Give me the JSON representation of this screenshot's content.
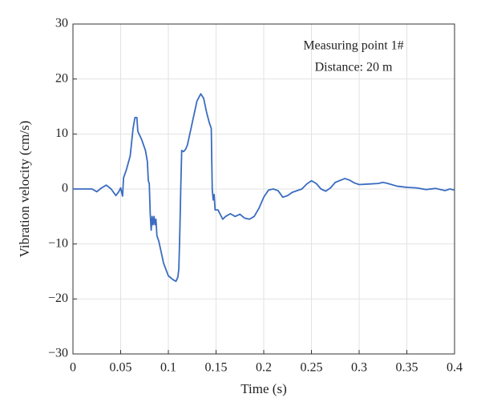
{
  "chart_data": {
    "type": "line",
    "xlabel": "Time (s)",
    "ylabel": "Vibration velocity (cm/s)",
    "annotations": [
      "Measuring point 1#",
      "Distance: 20 m"
    ],
    "x": [
      0,
      0.02,
      0.025,
      0.03,
      0.035,
      0.04,
      0.045,
      0.048,
      0.05,
      0.052,
      0.053,
      0.056,
      0.06,
      0.063,
      0.065,
      0.067,
      0.068,
      0.072,
      0.076,
      0.078,
      0.079,
      0.08,
      0.081,
      0.082,
      0.083,
      0.084,
      0.085,
      0.086,
      0.087,
      0.088,
      0.09,
      0.095,
      0.1,
      0.105,
      0.108,
      0.11,
      0.111,
      0.112,
      0.113,
      0.114,
      0.116,
      0.118,
      0.12,
      0.125,
      0.13,
      0.134,
      0.137,
      0.14,
      0.143,
      0.145,
      0.146,
      0.147,
      0.148,
      0.149,
      0.152,
      0.157,
      0.16,
      0.165,
      0.17,
      0.175,
      0.18,
      0.185,
      0.19,
      0.195,
      0.2,
      0.205,
      0.21,
      0.215,
      0.22,
      0.225,
      0.23,
      0.24,
      0.245,
      0.25,
      0.255,
      0.26,
      0.265,
      0.27,
      0.275,
      0.285,
      0.29,
      0.295,
      0.3,
      0.31,
      0.32,
      0.325,
      0.33,
      0.34,
      0.35,
      0.36,
      0.37,
      0.38,
      0.39,
      0.395,
      0.4
    ],
    "series": [
      {
        "color": "#3a6cc0",
        "values": [
          0,
          0,
          -0.5,
          0.2,
          0.7,
          0,
          -1.2,
          -0.5,
          0.2,
          -1.3,
          2,
          3.5,
          6,
          11,
          13,
          13,
          10.5,
          9,
          7,
          5,
          1.5,
          1,
          -4.5,
          -7.5,
          -5,
          -6.5,
          -5,
          -6.5,
          -5.5,
          -8.5,
          -9.5,
          -13.5,
          -15.8,
          -16.5,
          -16.8,
          -16,
          -14.5,
          -8,
          0,
          7,
          6.8,
          7.2,
          8,
          12,
          16,
          17.3,
          16.5,
          14,
          12,
          11,
          0,
          -2,
          -1,
          -3.8,
          -3.8,
          -5.5,
          -5,
          -4.5,
          -5,
          -4.6,
          -5.3,
          -5.5,
          -5,
          -3.5,
          -1.5,
          -0.2,
          0,
          -0.3,
          -1.5,
          -1.2,
          -0.6,
          0,
          0.9,
          1.5,
          1,
          0,
          -0.4,
          0.2,
          1.2,
          1.9,
          1.6,
          1.1,
          0.8,
          0.9,
          1,
          1.2,
          1,
          0.5,
          0.3,
          0.2,
          -0.1,
          0.1,
          -0.3,
          0,
          -0.2
        ]
      }
    ],
    "xlim": [
      0,
      0.4
    ],
    "xticks": [
      0,
      0.05,
      0.1,
      0.15,
      0.2,
      0.25,
      0.3,
      0.35,
      0.4
    ],
    "ylim": [
      -30,
      30
    ],
    "yticks": [
      {
        "value": -30,
        "label": "−30"
      },
      {
        "value": -20,
        "label": "−20"
      },
      {
        "value": -10,
        "label": "−10"
      },
      0,
      10,
      20,
      30
    ],
    "grid": true
  }
}
